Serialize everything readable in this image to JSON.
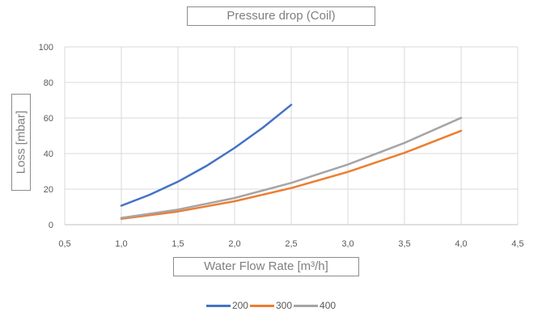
{
  "chart_data": {
    "type": "line",
    "title": "Pressure drop (Coil)",
    "xlabel": "Water Flow Rate [m³/h]",
    "ylabel": "Loss [mbar]",
    "xlim": [
      0.5,
      4.5
    ],
    "ylim": [
      0,
      100
    ],
    "x_ticks": [
      "0,5",
      "1,0",
      "1,5",
      "2,0",
      "2,5",
      "3,0",
      "3,5",
      "4,0",
      "4,5"
    ],
    "y_ticks": [
      "0",
      "20",
      "40",
      "60",
      "80",
      "100"
    ],
    "grid": true,
    "legend_position": "bottom",
    "series": [
      {
        "name": "200",
        "color": "#4472c4",
        "x": [
          1.0,
          1.25,
          1.5,
          1.75,
          2.0,
          2.25,
          2.5
        ],
        "y": [
          10.7,
          16.8,
          24.2,
          33.0,
          43.2,
          54.6,
          67.4
        ]
      },
      {
        "name": "300",
        "color": "#ed7d31",
        "x": [
          1.0,
          1.5,
          2.0,
          2.5,
          3.0,
          3.5,
          4.0
        ],
        "y": [
          3.3,
          7.4,
          13.2,
          20.6,
          29.7,
          40.4,
          52.8
        ]
      },
      {
        "name": "400",
        "color": "#a5a5a5",
        "x": [
          1.0,
          1.5,
          2.0,
          2.5,
          3.0,
          3.5,
          4.0
        ],
        "y": [
          3.8,
          8.5,
          15.0,
          23.5,
          33.8,
          46.0,
          60.1
        ]
      }
    ]
  }
}
